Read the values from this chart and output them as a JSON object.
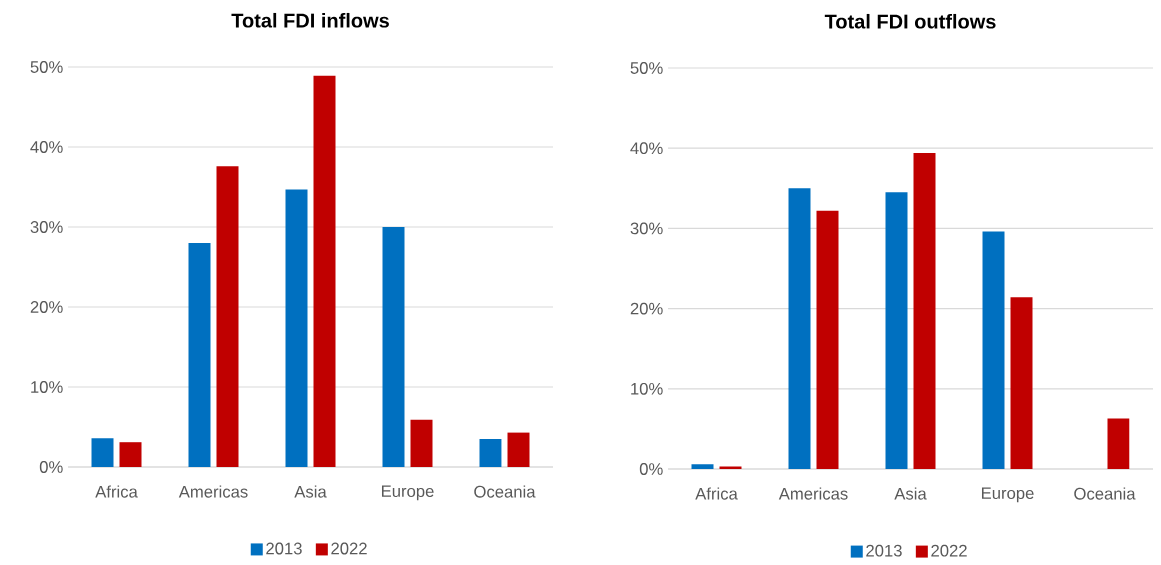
{
  "chart_data": [
    {
      "type": "bar",
      "title": "Total FDI inflows",
      "categories": [
        "Africa",
        "Americas",
        "Asia",
        "Europe",
        "Oceania"
      ],
      "series": [
        {
          "name": "2013",
          "color": "#0070c0",
          "values": [
            3.6,
            28.0,
            34.7,
            30.0,
            3.5
          ]
        },
        {
          "name": "2022",
          "color": "#c00000",
          "values": [
            3.1,
            37.6,
            48.9,
            5.9,
            4.3
          ]
        }
      ],
      "ylim": [
        0,
        50
      ],
      "yticks": [
        {
          "value": 0,
          "label": "0%"
        },
        {
          "value": 10,
          "label": "10%"
        },
        {
          "value": 20,
          "label": "20%"
        },
        {
          "value": 30,
          "label": "30%"
        },
        {
          "value": 40,
          "label": "40%"
        },
        {
          "value": 50,
          "label": "50%"
        }
      ],
      "grid": "y",
      "legend": "bottom"
    },
    {
      "type": "bar",
      "title": "Total FDI outflows",
      "categories": [
        "Africa",
        "Americas",
        "Asia",
        "Europe",
        "Oceania"
      ],
      "series": [
        {
          "name": "2013",
          "color": "#0070c0",
          "values": [
            0.6,
            35.0,
            34.5,
            29.6,
            0
          ]
        },
        {
          "name": "2022",
          "color": "#c00000",
          "values": [
            0.3,
            32.2,
            39.4,
            21.4,
            6.3
          ]
        }
      ],
      "ylim": [
        0,
        50
      ],
      "yticks": [
        {
          "value": 0,
          "label": "0%"
        },
        {
          "value": 10,
          "label": "10%"
        },
        {
          "value": 20,
          "label": "20%"
        },
        {
          "value": 30,
          "label": "30%"
        },
        {
          "value": 40,
          "label": "40%"
        },
        {
          "value": 50,
          "label": "50%"
        }
      ],
      "grid": "y",
      "legend": "bottom"
    }
  ]
}
